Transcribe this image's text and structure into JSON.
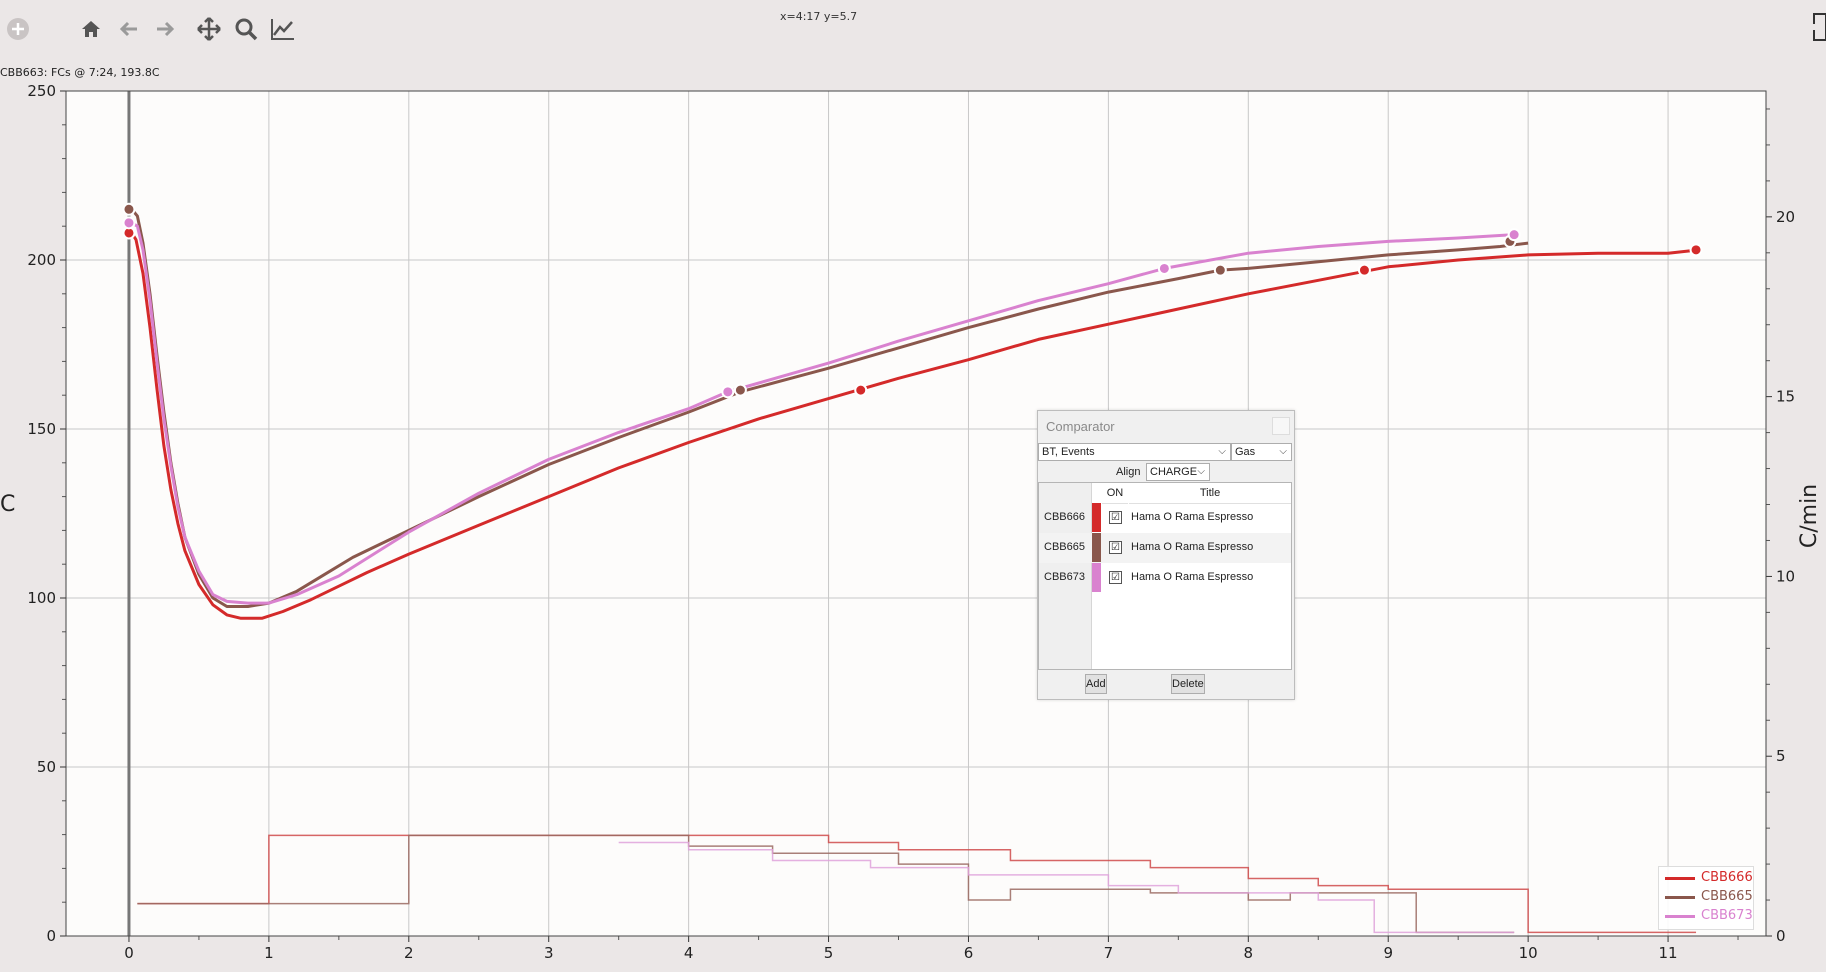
{
  "toolbar": {
    "coord_readout": "x=4:17 y=5.7",
    "status_text": "CBB663: FCs @ 7:24, 193.8C"
  },
  "chart_data": {
    "type": "line",
    "x_ticks": [
      "0",
      "1",
      "2",
      "3",
      "4",
      "5",
      "6",
      "7",
      "8",
      "9",
      "10",
      "11"
    ],
    "xlim": [
      -0.45,
      11.7
    ],
    "y_left_ticks": [
      "0",
      "50",
      "100",
      "150",
      "200",
      "250"
    ],
    "ylim_left": [
      0,
      250
    ],
    "ylabel_left": "C",
    "y_right_ticks": [
      "0",
      "5",
      "10",
      "15",
      "20"
    ],
    "ylim_right": [
      0,
      23.5
    ],
    "ylabel_right": "C/min",
    "grid": true,
    "legend_position": "bottom-right",
    "series": [
      {
        "name": "CBB666",
        "color": "#d42a2a",
        "width": 3,
        "points": [
          [
            0.02,
            208
          ],
          [
            0.05,
            206
          ],
          [
            0.1,
            196
          ],
          [
            0.15,
            180
          ],
          [
            0.2,
            162
          ],
          [
            0.25,
            145
          ],
          [
            0.3,
            132
          ],
          [
            0.35,
            122
          ],
          [
            0.4,
            114
          ],
          [
            0.5,
            104
          ],
          [
            0.6,
            98
          ],
          [
            0.7,
            95
          ],
          [
            0.8,
            94
          ],
          [
            0.95,
            94
          ],
          [
            1.1,
            96
          ],
          [
            1.3,
            99.5
          ],
          [
            1.5,
            103.5
          ],
          [
            1.7,
            107.5
          ],
          [
            2.0,
            113
          ],
          [
            2.5,
            121.5
          ],
          [
            3.0,
            130
          ],
          [
            3.5,
            138.5
          ],
          [
            4.0,
            146
          ],
          [
            4.5,
            153
          ],
          [
            5.0,
            159
          ],
          [
            5.5,
            165
          ],
          [
            6.0,
            170.5
          ],
          [
            6.5,
            176.5
          ],
          [
            7.0,
            181
          ],
          [
            7.5,
            185.5
          ],
          [
            8.0,
            190
          ],
          [
            8.5,
            194
          ],
          [
            9.0,
            198
          ],
          [
            9.5,
            200
          ],
          [
            10.0,
            201.5
          ],
          [
            10.5,
            202
          ],
          [
            11.0,
            202
          ],
          [
            11.22,
            203
          ]
        ],
        "events": [
          [
            0.0,
            208
          ],
          [
            5.23,
            161.5
          ],
          [
            8.83,
            197
          ],
          [
            11.2,
            203
          ]
        ]
      },
      {
        "name": "CBB665",
        "color": "#8a574c",
        "width": 3,
        "points": [
          [
            0.02,
            215
          ],
          [
            0.06,
            213
          ],
          [
            0.1,
            205
          ],
          [
            0.15,
            190
          ],
          [
            0.2,
            172
          ],
          [
            0.25,
            155
          ],
          [
            0.3,
            140
          ],
          [
            0.35,
            128
          ],
          [
            0.4,
            118
          ],
          [
            0.5,
            107
          ],
          [
            0.6,
            100
          ],
          [
            0.7,
            97.5
          ],
          [
            0.85,
            97.5
          ],
          [
            1.0,
            98.5
          ],
          [
            1.2,
            102
          ],
          [
            1.4,
            107
          ],
          [
            1.6,
            112
          ],
          [
            1.8,
            116
          ],
          [
            2.0,
            120
          ],
          [
            2.5,
            130
          ],
          [
            3.0,
            139.5
          ],
          [
            3.5,
            147.5
          ],
          [
            4.0,
            155
          ],
          [
            4.37,
            161
          ],
          [
            5.0,
            168
          ],
          [
            5.5,
            174
          ],
          [
            6.0,
            180
          ],
          [
            6.5,
            185.5
          ],
          [
            7.0,
            190.5
          ],
          [
            7.5,
            194.5
          ],
          [
            7.8,
            197
          ],
          [
            8.0,
            197.5
          ],
          [
            8.5,
            199.5
          ],
          [
            9.0,
            201.5
          ],
          [
            9.5,
            203
          ],
          [
            9.8,
            204
          ],
          [
            10.0,
            205
          ]
        ],
        "events": [
          [
            0.0,
            215
          ],
          [
            4.37,
            161.5
          ],
          [
            7.8,
            197
          ],
          [
            9.87,
            205.5
          ]
        ]
      },
      {
        "name": "CBB673",
        "color": "#d982cf",
        "width": 3,
        "points": [
          [
            0.02,
            211
          ],
          [
            0.06,
            210
          ],
          [
            0.1,
            203
          ],
          [
            0.15,
            188
          ],
          [
            0.2,
            170
          ],
          [
            0.25,
            153
          ],
          [
            0.3,
            139
          ],
          [
            0.35,
            127
          ],
          [
            0.4,
            118
          ],
          [
            0.5,
            108
          ],
          [
            0.6,
            101
          ],
          [
            0.7,
            99
          ],
          [
            0.85,
            98.5
          ],
          [
            1.0,
            98.5
          ],
          [
            1.2,
            101
          ],
          [
            1.5,
            106.5
          ],
          [
            2.0,
            119.5
          ],
          [
            2.5,
            131
          ],
          [
            3.0,
            141
          ],
          [
            3.5,
            149
          ],
          [
            4.0,
            156
          ],
          [
            4.28,
            161
          ],
          [
            5.0,
            169.5
          ],
          [
            5.5,
            176
          ],
          [
            6.0,
            182
          ],
          [
            6.5,
            188
          ],
          [
            7.0,
            193
          ],
          [
            7.4,
            197.5
          ],
          [
            8.0,
            202
          ],
          [
            8.5,
            204
          ],
          [
            9.0,
            205.5
          ],
          [
            9.5,
            206.5
          ],
          [
            9.9,
            207.5
          ]
        ],
        "events": [
          [
            0.0,
            211
          ],
          [
            4.28,
            161
          ],
          [
            7.4,
            197.5
          ],
          [
            9.9,
            207.5
          ]
        ]
      }
    ],
    "gas_series": [
      {
        "name": "CBB666",
        "color": "#cf4a4a",
        "steps": [
          [
            0.06,
            0.9
          ],
          [
            1.0,
            2.8
          ],
          [
            5.0,
            2.6
          ],
          [
            5.5,
            2.4
          ],
          [
            6.3,
            2.1
          ],
          [
            7.3,
            1.9
          ],
          [
            8.0,
            1.6
          ],
          [
            8.5,
            1.4
          ],
          [
            9.0,
            1.3
          ],
          [
            10.0,
            0.1
          ],
          [
            11.2,
            0.1
          ]
        ]
      },
      {
        "name": "CBB665",
        "color": "#9a6860",
        "steps": [
          [
            0.06,
            0.9
          ],
          [
            2.0,
            2.8
          ],
          [
            4.0,
            2.5
          ],
          [
            4.6,
            2.3
          ],
          [
            5.5,
            2.0
          ],
          [
            6.0,
            1.0
          ],
          [
            6.3,
            1.3
          ],
          [
            7.3,
            1.2
          ],
          [
            8.0,
            1.0
          ],
          [
            8.3,
            1.2
          ],
          [
            9.2,
            0.1
          ],
          [
            9.9,
            0.1
          ]
        ]
      },
      {
        "name": "CBB673",
        "color": "#dfa2da",
        "steps": [
          [
            3.5,
            2.6
          ],
          [
            4.0,
            2.4
          ],
          [
            4.6,
            2.1
          ],
          [
            5.3,
            1.9
          ],
          [
            6.0,
            1.7
          ],
          [
            7.0,
            1.4
          ],
          [
            7.5,
            1.2
          ],
          [
            8.5,
            1.0
          ],
          [
            8.9,
            0.1
          ],
          [
            9.9,
            0.1
          ]
        ]
      }
    ]
  },
  "comparator": {
    "title": "Comparator",
    "curve_select": "BT, Events",
    "extra_select": "Gas",
    "align_label": "Align",
    "align_select": "CHARGE",
    "col_on": "ON",
    "col_title": "Title",
    "rows": [
      {
        "id": "CBB666",
        "title": "Hama O Rama Espresso",
        "color": "#d42a2a",
        "checked": "☑"
      },
      {
        "id": "CBB665",
        "title": "Hama O Rama Espresso",
        "color": "#8a574c",
        "checked": "☑"
      },
      {
        "id": "CBB673",
        "title": "Hama O Rama Espresso",
        "color": "#d982cf",
        "checked": "☑"
      }
    ],
    "add_button": "Add",
    "delete_button": "Delete"
  },
  "legend": [
    {
      "label": "CBB666",
      "color": "#d42a2a"
    },
    {
      "label": "CBB665",
      "color": "#8a574c"
    },
    {
      "label": "CBB673",
      "color": "#d982cf"
    }
  ]
}
